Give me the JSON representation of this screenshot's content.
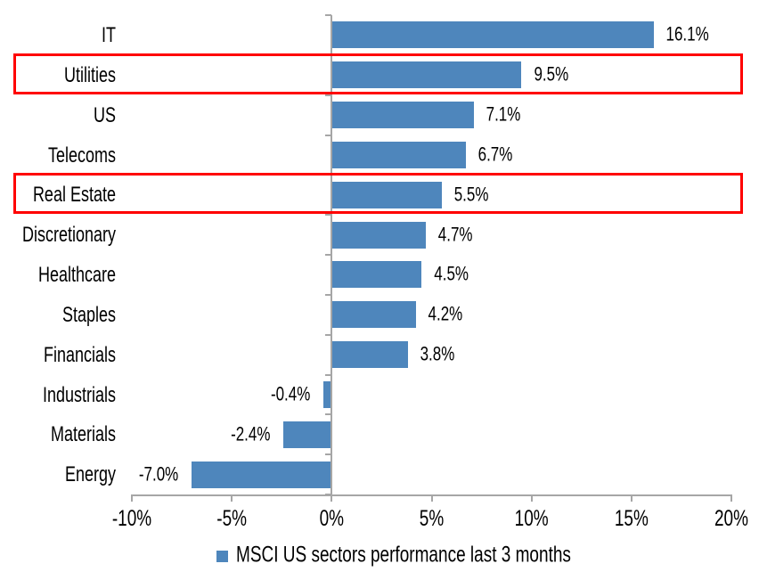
{
  "chart_data": {
    "type": "bar",
    "orientation": "horizontal",
    "title": "",
    "categories": [
      "IT",
      "Utilities",
      "US",
      "Telecoms",
      "Real Estate",
      "Discretionary",
      "Healthcare",
      "Staples",
      "Financials",
      "Industrials",
      "Materials",
      "Energy"
    ],
    "series": [
      {
        "name": "MSCI US sectors performance last 3 months",
        "values": [
          16.1,
          9.5,
          7.1,
          6.7,
          5.5,
          4.7,
          4.5,
          4.2,
          3.8,
          -0.4,
          -2.4,
          -7.0
        ]
      }
    ],
    "value_labels": [
      "16.1%",
      "9.5%",
      "7.1%",
      "6.7%",
      "5.5%",
      "4.7%",
      "4.5%",
      "4.2%",
      "3.8%",
      "-0.4%",
      "-2.4%",
      "-7.0%"
    ],
    "highlighted_categories": [
      "Utilities",
      "Real Estate"
    ],
    "xlim": [
      -10,
      20
    ],
    "x_tick_values": [
      -10,
      -5,
      0,
      5,
      10,
      15,
      20
    ],
    "x_tick_labels": [
      "-10%",
      "-5%",
      "0%",
      "5%",
      "10%",
      "15%",
      "20%"
    ],
    "grid": false,
    "legend": {
      "label": "MSCI US sectors performance last 3 months",
      "position": "bottom"
    },
    "colors": {
      "bar": "#4E86BC",
      "highlight_box": "#FF0000",
      "axis": "#A6A6A6",
      "text": "#000000",
      "background": "#FFFFFF"
    }
  }
}
